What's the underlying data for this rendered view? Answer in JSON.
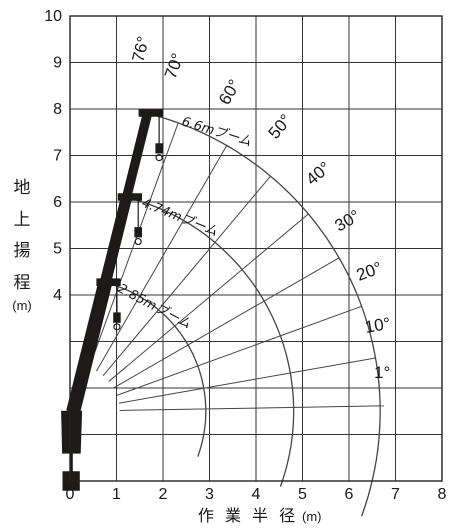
{
  "diagram": {
    "x_ticks": [
      "0",
      "1",
      "2",
      "3",
      "4",
      "5",
      "6",
      "7",
      "8"
    ],
    "y_ticks": [
      "4",
      "5",
      "6",
      "7",
      "8",
      "9",
      "10"
    ],
    "y_label_chars": [
      "地",
      "上",
      "揚",
      "程"
    ],
    "y_unit": "(m)",
    "x_label": "作 業 半 径",
    "x_unit": "(m)",
    "angle_labels": [
      "76°",
      "70°",
      "60°",
      "50°",
      "40°",
      "30°",
      "20°",
      "10°",
      "1°"
    ],
    "boom_labels": [
      "6.6mブーム",
      "4.74mブーム",
      "2.85mブーム"
    ]
  },
  "chart_data": {
    "type": "line",
    "xlim": [
      0,
      8
    ],
    "ylim": [
      0,
      10
    ],
    "grid": true,
    "pivot": [
      0.07,
      1.5
    ],
    "angles_deg": [
      76,
      70,
      60,
      50,
      40,
      30,
      20,
      10,
      1
    ],
    "booms": [
      {
        "name": "6.6mブーム",
        "reach": 6.6
      },
      {
        "name": "4.74mブーム",
        "reach": 4.74
      },
      {
        "name": "2.85mブーム",
        "reach": 2.85
      }
    ]
  }
}
